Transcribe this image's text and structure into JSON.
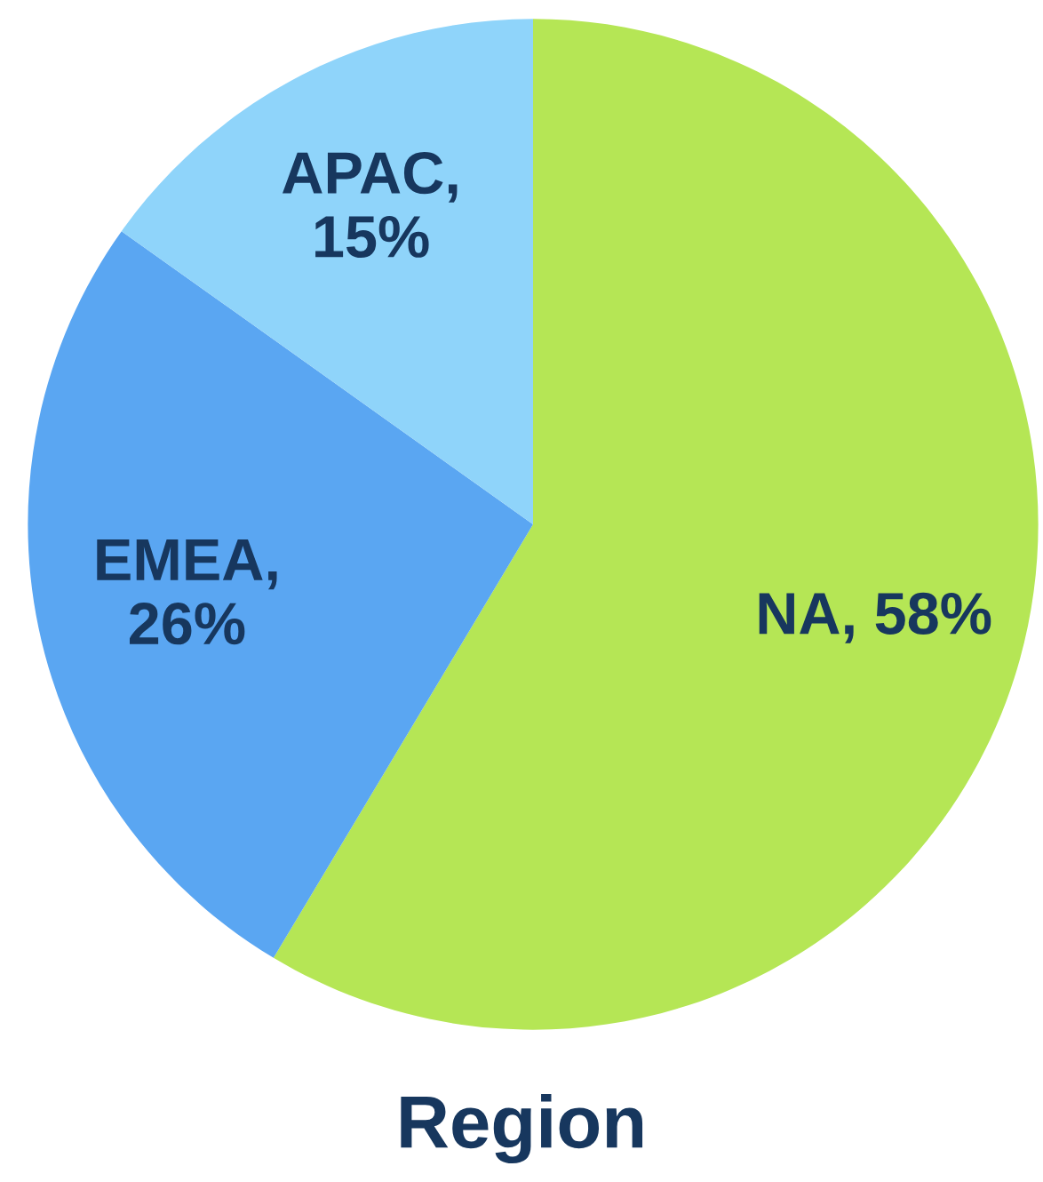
{
  "chart_data": {
    "type": "pie",
    "title": "Region",
    "categories": [
      "NA",
      "EMEA",
      "APAC"
    ],
    "values": [
      58,
      26,
      15
    ],
    "value_labels": [
      ", 58%",
      ", 26%",
      ", 15%"
    ],
    "colors": [
      "#b5e655",
      "#5aa6f2",
      "#8fd4fa"
    ],
    "legend": false
  }
}
